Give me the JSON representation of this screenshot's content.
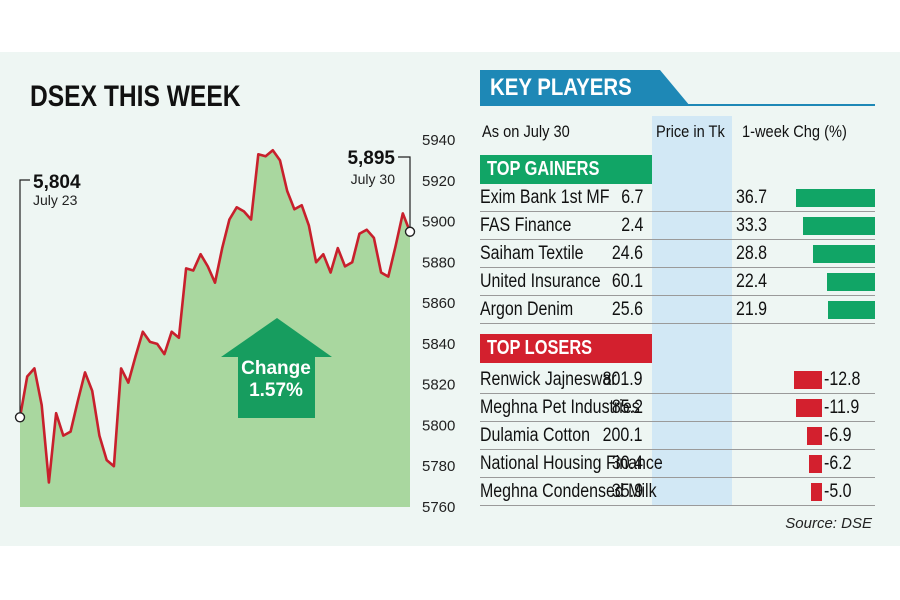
{
  "title": "DSEX THIS WEEK",
  "colors": {
    "line": "#c8202c",
    "area": "#a9d79f",
    "arrow": "#0f9a5c",
    "gainer": "#11a566",
    "loser": "#d3202e",
    "banner": "#1e88b6",
    "price_bg": "#d2e8f5"
  },
  "chart_data": {
    "type": "area",
    "title": "DSEX THIS WEEK",
    "xlabel": "",
    "ylabel": "",
    "ylim": [
      5760,
      5940
    ],
    "yticks": [
      5760,
      5780,
      5800,
      5820,
      5840,
      5860,
      5880,
      5900,
      5920,
      5940
    ],
    "grid": false,
    "series": [
      {
        "values": [
          5804,
          5824,
          5828,
          5810,
          5772,
          5806,
          5795,
          5797,
          5812,
          5826,
          5817,
          5795,
          5783,
          5780,
          5828,
          5821,
          5834,
          5846,
          5841,
          5840,
          5835,
          5846,
          5843,
          5877,
          5876,
          5884,
          5878,
          5870,
          5887,
          5901,
          5907,
          5905,
          5901,
          5933,
          5932,
          5935,
          5930,
          5915,
          5906,
          5908,
          5898,
          5880,
          5884,
          5875,
          5887,
          5878,
          5880,
          5894,
          5896,
          5892,
          5875,
          5873,
          5888,
          5904,
          5895
        ]
      }
    ],
    "annotations": {
      "start": {
        "value": "5,804",
        "date": "July 23"
      },
      "end": {
        "value": "5,895",
        "date": "July 30"
      },
      "change_label": "Change",
      "change_value": "1.57%"
    }
  },
  "key_players": {
    "title": "KEY PLAYERS",
    "as_on": "As on July 30",
    "price_header": "Price in Tk",
    "change_header": "1-week Chg (%)",
    "gainers_label": "TOP GAINERS",
    "losers_label": "TOP LOSERS",
    "gainers": [
      {
        "name": "Exim Bank 1st MF",
        "price": "6.7",
        "change": "36.7",
        "change_num": 36.7
      },
      {
        "name": "FAS Finance",
        "price": "2.4",
        "change": "33.3",
        "change_num": 33.3
      },
      {
        "name": "Saiham Textile",
        "price": "24.6",
        "change": "28.8",
        "change_num": 28.8
      },
      {
        "name": "United Insurance",
        "price": "60.1",
        "change": "22.4",
        "change_num": 22.4
      },
      {
        "name": "Argon Denim",
        "price": "25.6",
        "change": "21.9",
        "change_num": 21.9
      }
    ],
    "losers": [
      {
        "name": "Renwick Jajneswar",
        "price": "801.9",
        "change": "-12.8",
        "change_num": -12.8
      },
      {
        "name": "Meghna Pet Industries",
        "price": "85.2",
        "change": "-11.9",
        "change_num": -11.9
      },
      {
        "name": "Dulamia Cotton",
        "price": "200.1",
        "change": "-6.9",
        "change_num": -6.9
      },
      {
        "name": "National Housing Finance",
        "price": "30.4",
        "change": "-6.2",
        "change_num": -6.2
      },
      {
        "name": "Meghna Condensed Milk",
        "price": "35.9",
        "change": "-5.0",
        "change_num": -5.0
      }
    ]
  },
  "source": "Source: DSE"
}
